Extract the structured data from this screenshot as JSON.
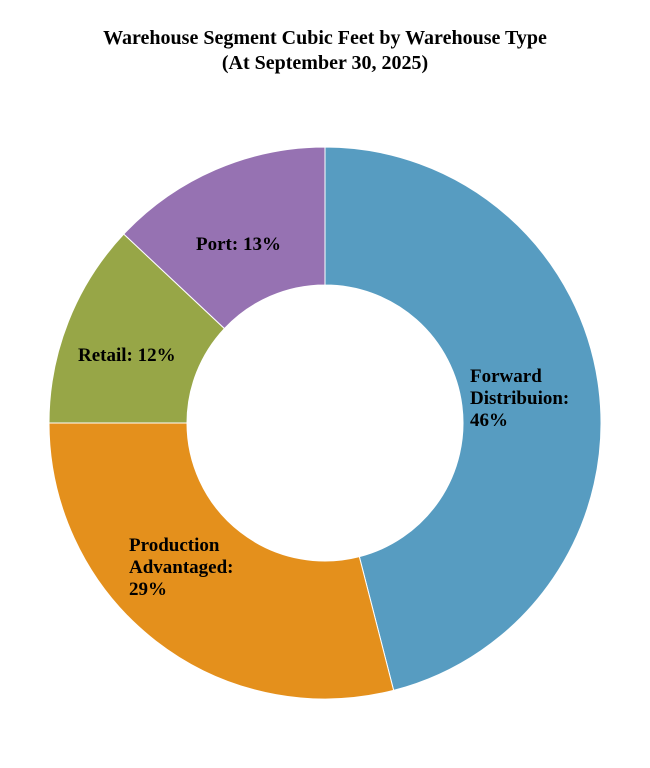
{
  "chart_data": {
    "type": "pie",
    "variant": "donut",
    "title": "Warehouse Segment Cubic Feet by Warehouse Type",
    "subtitle": "(At September 30, 2025)",
    "slices": [
      {
        "label": "Forward Distribuion: 46%",
        "value": 46,
        "color": "#579cc1"
      },
      {
        "label": "Production Advantaged: 29%",
        "value": 29,
        "color": "#e4901c"
      },
      {
        "label": "Retail: 12%",
        "value": 12,
        "color": "#97a647"
      },
      {
        "label": "Port: 13%",
        "value": 13,
        "color": "#9672b2"
      }
    ],
    "legend": "none"
  }
}
